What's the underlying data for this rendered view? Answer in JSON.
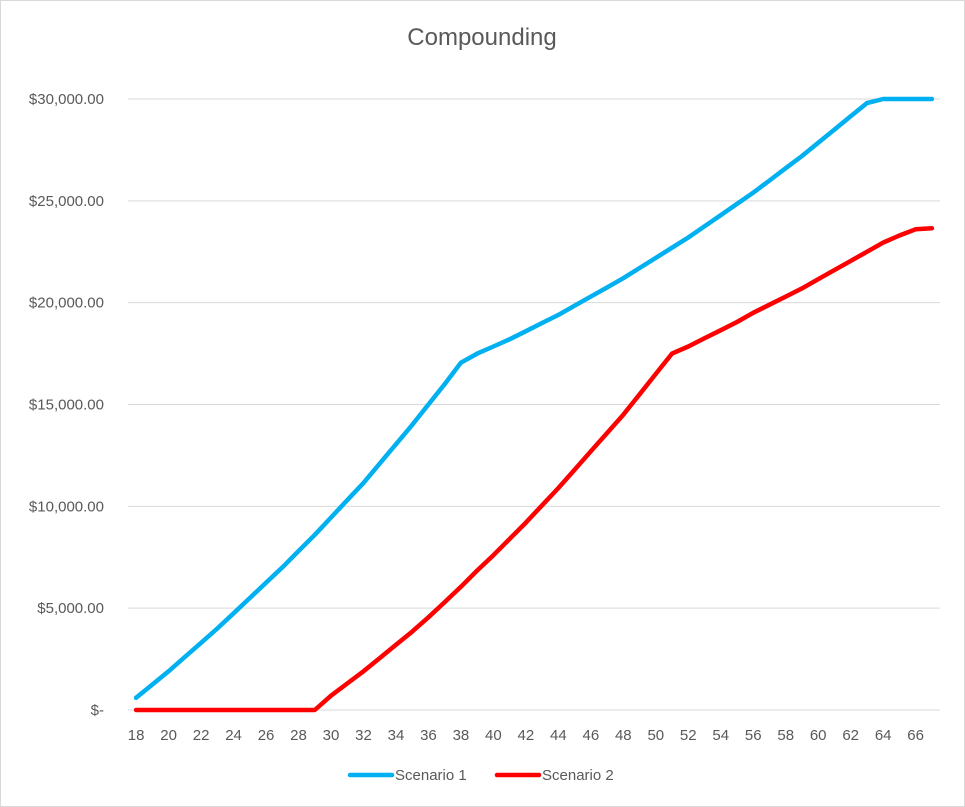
{
  "chart_data": {
    "type": "line",
    "title": "Compounding",
    "xlabel": "",
    "ylabel": "",
    "x": [
      18,
      19,
      20,
      21,
      22,
      23,
      24,
      25,
      26,
      27,
      28,
      29,
      30,
      31,
      32,
      33,
      34,
      35,
      36,
      37,
      38,
      39,
      40,
      41,
      42,
      43,
      44,
      45,
      46,
      47,
      48,
      49,
      50,
      51,
      52,
      53,
      54,
      55,
      56,
      57,
      58,
      59,
      60,
      61,
      62,
      63,
      64,
      65,
      66,
      67
    ],
    "x_tick_labels": [
      "18",
      "20",
      "22",
      "24",
      "26",
      "28",
      "30",
      "32",
      "34",
      "36",
      "38",
      "40",
      "42",
      "44",
      "46",
      "48",
      "50",
      "52",
      "54",
      "56",
      "58",
      "60",
      "62",
      "64",
      "66"
    ],
    "y_tick_labels": [
      "$-",
      "$5,000.00",
      "$10,000.00",
      "$15,000.00",
      "$20,000.00",
      "$25,000.00",
      "$30,000.00"
    ],
    "ylim": [
      0,
      30000
    ],
    "grid": true,
    "legend_position": "bottom",
    "series": [
      {
        "name": "Scenario 1",
        "color": "#00b0f0",
        "values": [
          600,
          1250,
          1900,
          2600,
          3300,
          4000,
          4750,
          5500,
          6250,
          7000,
          7800,
          8600,
          9450,
          10300,
          11150,
          12100,
          13050,
          14000,
          15000,
          16000,
          17050,
          17500,
          17850,
          18200,
          18600,
          19000,
          19400,
          19850,
          20300,
          20750,
          21200,
          21700,
          22200,
          22700,
          23200,
          23750,
          24300,
          24850,
          25400,
          26000,
          26600,
          27200,
          27850,
          28500,
          29150,
          29800,
          30000,
          30000,
          30000,
          30000
        ]
      },
      {
        "name": "Scenario 2",
        "color": "#ff0000",
        "values": [
          0,
          0,
          0,
          0,
          0,
          0,
          0,
          0,
          0,
          0,
          0,
          0,
          700,
          1300,
          1900,
          2550,
          3200,
          3850,
          4550,
          5300,
          6050,
          6850,
          7600,
          8400,
          9200,
          10050,
          10900,
          11800,
          12700,
          13600,
          14500,
          15500,
          16500,
          17500,
          17850,
          18250,
          18650,
          19050,
          19500,
          19900,
          20300,
          20700,
          21150,
          21600,
          22050,
          22500,
          22950,
          23300,
          23600,
          23650
        ]
      }
    ]
  }
}
